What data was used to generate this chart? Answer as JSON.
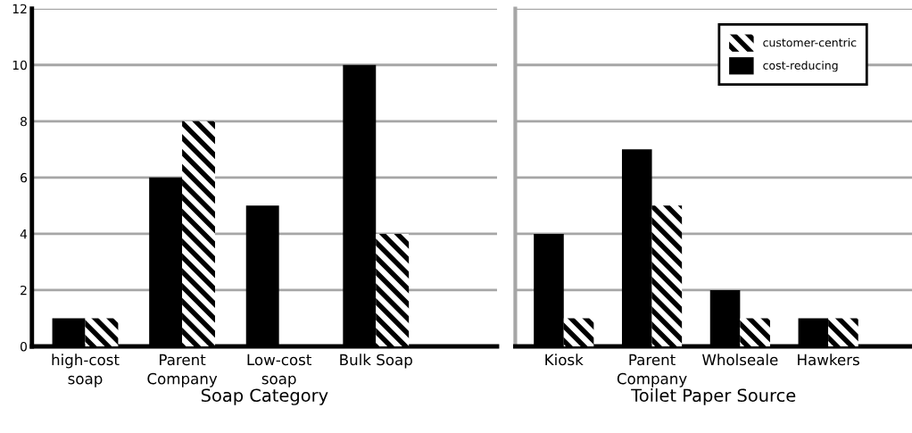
{
  "chart_data": [
    {
      "type": "bar",
      "xlabel": "Soap Category",
      "categories": [
        "high-cost\nsoap",
        "Parent\nCompany",
        "Low-cost\nsoap",
        "Bulk Soap"
      ],
      "series": [
        {
          "color": "#000000",
          "values": [
            1,
            6,
            5,
            10
          ]
        },
        {
          "color": "#ffffff",
          "values": [
            1,
            8,
            null,
            4
          ]
        }
      ],
      "ylim": [
        0,
        12
      ],
      "yticks": [
        0,
        2,
        4,
        6,
        8,
        10,
        12
      ],
      "grid": "y",
      "legend": false
    },
    {
      "type": "bar",
      "xlabel": "Toilet Paper Source",
      "categories": [
        "Kiosk",
        "Parent\nCompany",
        "Wholseale",
        "Hawkers"
      ],
      "series": [
        {
          "name": "cost-reducing",
          "color": "#000000",
          "values": [
            4,
            7,
            2,
            1
          ]
        },
        {
          "name": "customer-centric",
          "color": "#ffffff",
          "values": [
            1,
            5,
            1,
            1
          ]
        }
      ],
      "ylim": [
        0,
        12
      ],
      "yticks": [
        0,
        2,
        4,
        6,
        8,
        10,
        12
      ],
      "grid": "y",
      "legend": "top right",
      "tick_labels": "x"
    }
  ]
}
